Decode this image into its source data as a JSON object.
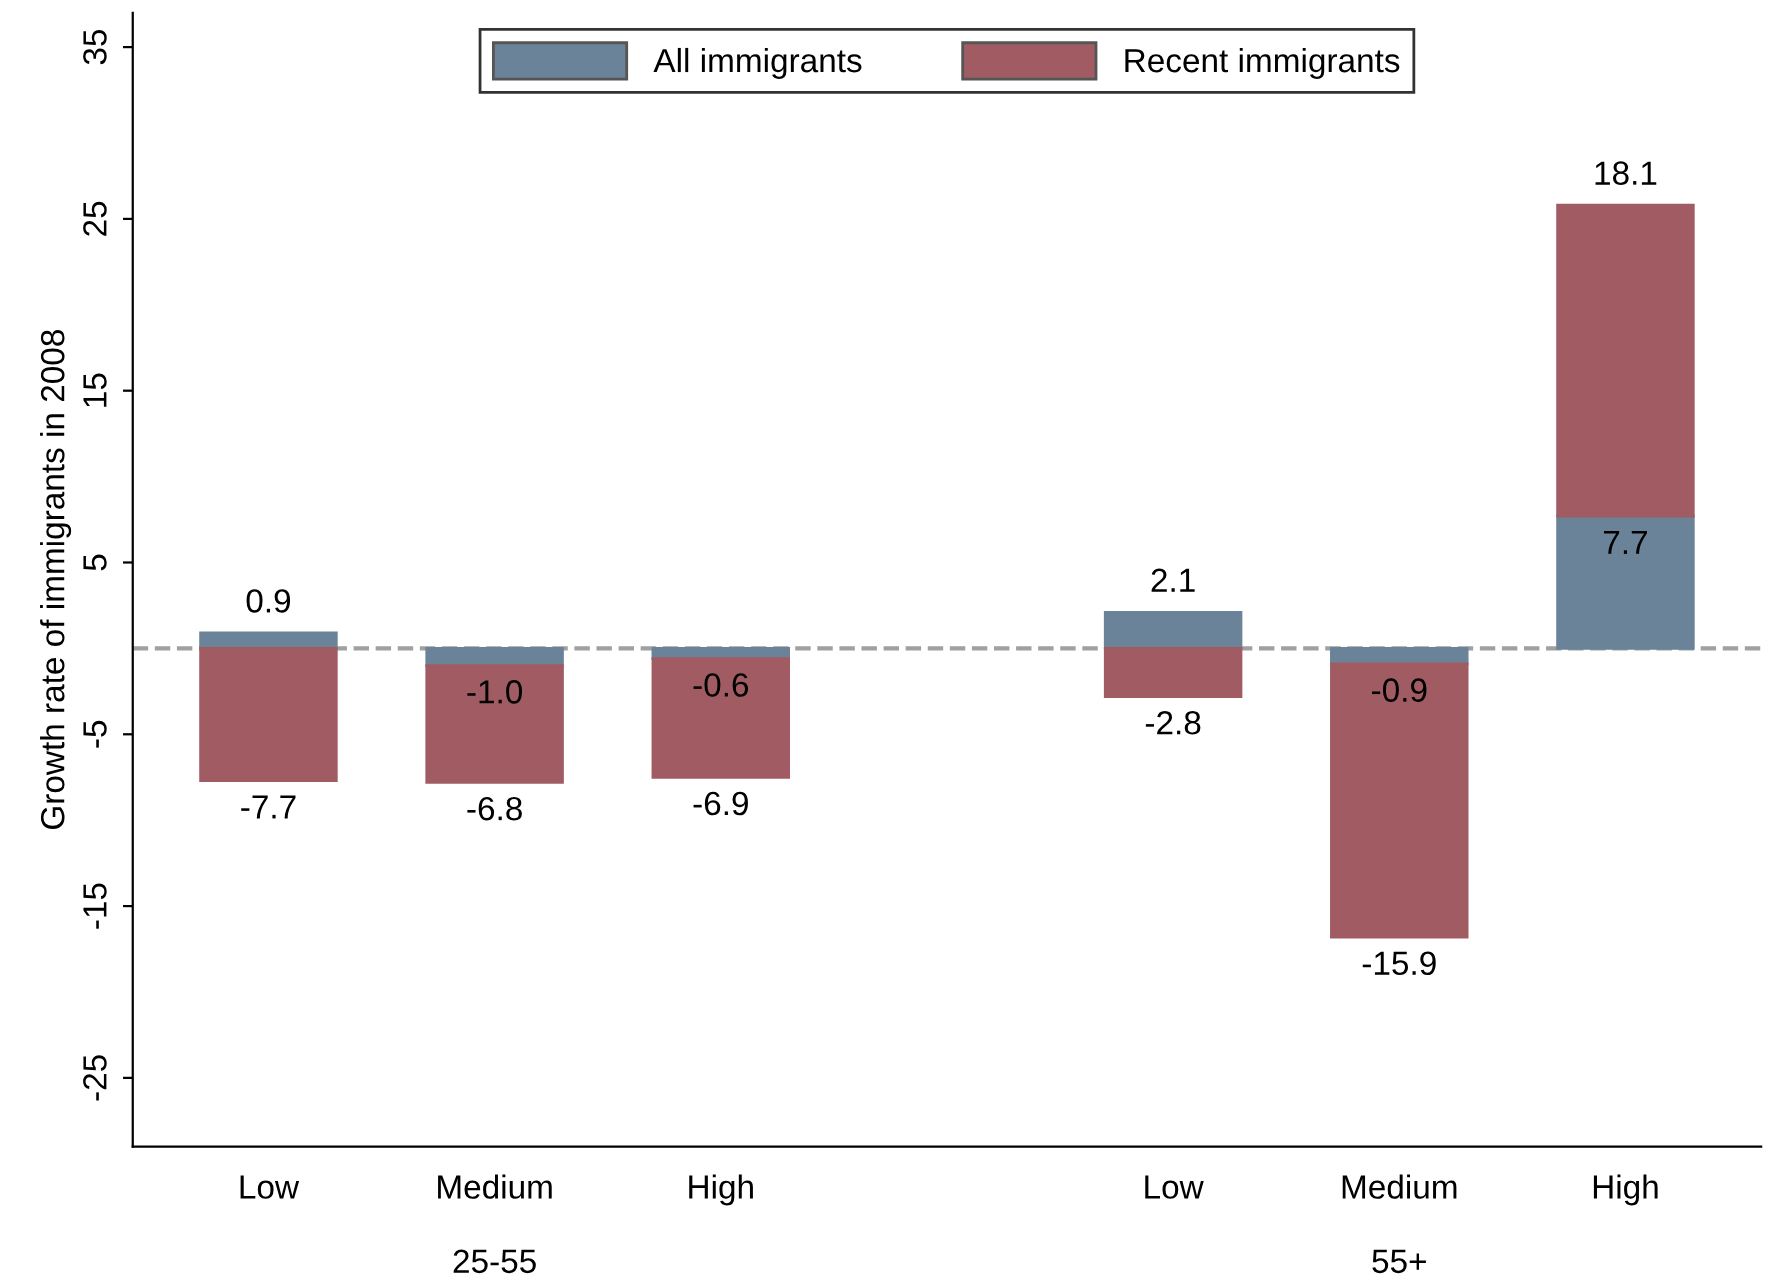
{
  "chart_data": {
    "type": "bar",
    "stacked": true,
    "ylabel": "Growth rate of immigrants in 2008",
    "categories": [
      "Low",
      "Medium",
      "High",
      null,
      "Low",
      "Medium",
      "High"
    ],
    "series": [
      {
        "name": "All immigrants",
        "color": "#6a8398",
        "values": [
          0.9,
          -1.0,
          -0.6,
          null,
          2.1,
          -0.9,
          7.7
        ],
        "value_labels": [
          "0.9",
          "-1.0",
          "-0.6",
          null,
          "2.1",
          "-0.9",
          "7.7"
        ]
      },
      {
        "name": "Recent immigrants",
        "color": "#a05c62",
        "values": [
          -7.7,
          -6.8,
          -6.9,
          null,
          -2.8,
          -15.9,
          18.1
        ],
        "value_labels": [
          "-7.7",
          "-6.8",
          "-6.9",
          null,
          "-2.8",
          "-15.9",
          "18.1"
        ]
      }
    ],
    "annotations": [
      "25-55",
      "55+"
    ],
    "ylim": [
      -29,
      37
    ],
    "yticks": [
      -25,
      -15,
      -5,
      5,
      15,
      25,
      35
    ],
    "ref_lines": [
      {
        "axis": "y",
        "value": 0,
        "label": null,
        "color": "#a0a0a0",
        "line_style": "dashed"
      }
    ],
    "legend": "top",
    "grid": false
  }
}
